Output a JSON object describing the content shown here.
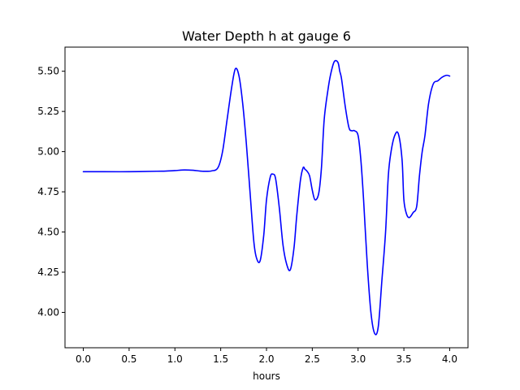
{
  "chart_data": {
    "type": "line",
    "title": "Water Depth h at gauge 6",
    "xlabel": "hours",
    "ylabel": "",
    "xlim": [
      -0.2,
      4.2
    ],
    "ylim": [
      3.78,
      5.65
    ],
    "xticks": [
      0.0,
      0.5,
      1.0,
      1.5,
      2.0,
      2.5,
      3.0,
      3.5,
      4.0
    ],
    "xtick_labels": [
      "0.0",
      "0.5",
      "1.0",
      "1.5",
      "2.0",
      "2.5",
      "3.0",
      "3.5",
      "4.0"
    ],
    "yticks": [
      4.0,
      4.25,
      4.5,
      4.75,
      5.0,
      5.25,
      5.5
    ],
    "ytick_labels": [
      "4.00",
      "4.25",
      "4.50",
      "4.75",
      "5.00",
      "5.25",
      "5.50"
    ],
    "grid": false,
    "series": [
      {
        "color": "#0000ff",
        "x": [
          0.0,
          0.2,
          0.5,
          0.8,
          0.9,
          1.0,
          1.1,
          1.2,
          1.3,
          1.4,
          1.47,
          1.52,
          1.57,
          1.62,
          1.66,
          1.7,
          1.74,
          1.78,
          1.82,
          1.86,
          1.89,
          1.93,
          1.97,
          2.0,
          2.04,
          2.07,
          2.1,
          2.14,
          2.18,
          2.22,
          2.26,
          2.3,
          2.33,
          2.37,
          2.4,
          2.42,
          2.44,
          2.47,
          2.5,
          2.53,
          2.57,
          2.6,
          2.63,
          2.67,
          2.7,
          2.74,
          2.78,
          2.8,
          2.82,
          2.86,
          2.9,
          2.93,
          2.96,
          3.0,
          3.03,
          3.06,
          3.1,
          3.14,
          3.18,
          3.22,
          3.26,
          3.3,
          3.33,
          3.36,
          3.4,
          3.44,
          3.48,
          3.5,
          3.53,
          3.56,
          3.6,
          3.64,
          3.67,
          3.7,
          3.73,
          3.77,
          3.82,
          3.87,
          3.91,
          3.94,
          3.97,
          4.0
        ],
        "y": [
          4.875,
          4.875,
          4.875,
          4.878,
          4.879,
          4.882,
          4.886,
          4.884,
          4.878,
          4.88,
          4.9,
          5.0,
          5.2,
          5.4,
          5.515,
          5.47,
          5.3,
          5.05,
          4.75,
          4.45,
          4.34,
          4.32,
          4.48,
          4.7,
          4.84,
          4.86,
          4.83,
          4.65,
          4.42,
          4.3,
          4.265,
          4.4,
          4.6,
          4.82,
          4.9,
          4.89,
          4.88,
          4.85,
          4.76,
          4.7,
          4.74,
          4.9,
          5.2,
          5.38,
          5.48,
          5.56,
          5.555,
          5.5,
          5.45,
          5.28,
          5.15,
          5.13,
          5.13,
          5.1,
          4.95,
          4.7,
          4.3,
          4.0,
          3.87,
          3.91,
          4.2,
          4.5,
          4.85,
          5.0,
          5.1,
          5.11,
          4.95,
          4.7,
          4.61,
          4.59,
          4.62,
          4.66,
          4.85,
          5.0,
          5.1,
          5.3,
          5.42,
          5.44,
          5.46,
          5.47,
          5.475,
          5.47
        ]
      }
    ]
  }
}
